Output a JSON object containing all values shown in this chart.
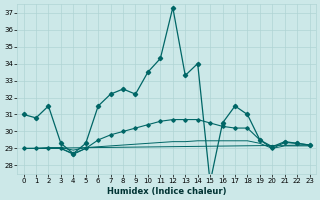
{
  "xlabel": "Humidex (Indice chaleur)",
  "bg_color": "#cce8e8",
  "grid_color": "#b0d4d4",
  "line_color": "#006666",
  "xlim": [
    -0.5,
    23.5
  ],
  "ylim": [
    27.5,
    37.5
  ],
  "yticks": [
    28,
    29,
    30,
    31,
    32,
    33,
    34,
    35,
    36,
    37
  ],
  "xticks": [
    0,
    1,
    2,
    3,
    4,
    5,
    6,
    7,
    8,
    9,
    10,
    11,
    12,
    13,
    14,
    15,
    16,
    17,
    18,
    19,
    20,
    21,
    22,
    23
  ],
  "line1": {
    "x": [
      0,
      1,
      2,
      3,
      4,
      5,
      6,
      7,
      8,
      9,
      10,
      11,
      12,
      13,
      14,
      15,
      16,
      17,
      18,
      19,
      20,
      21,
      22,
      23
    ],
    "y": [
      31.0,
      30.8,
      31.5,
      29.3,
      28.7,
      29.3,
      31.5,
      32.2,
      32.5,
      32.2,
      33.5,
      34.3,
      37.3,
      33.3,
      34.0,
      27.0,
      30.5,
      31.5,
      31.0,
      29.5,
      29.1,
      29.4,
      29.3,
      29.2
    ]
  },
  "line2": {
    "x": [
      0,
      1,
      2,
      3,
      4,
      5,
      6,
      7,
      8,
      9,
      10,
      11,
      12,
      13,
      14,
      15,
      16,
      17,
      18,
      19,
      20,
      21,
      22,
      23
    ],
    "y": [
      29.0,
      29.0,
      29.0,
      29.0,
      28.7,
      29.0,
      29.5,
      29.8,
      30.0,
      30.2,
      30.4,
      30.6,
      30.7,
      30.7,
      30.7,
      30.5,
      30.3,
      30.2,
      30.2,
      29.5,
      29.0,
      29.35,
      29.3,
      29.2
    ]
  },
  "line3": {
    "x": [
      0,
      1,
      2,
      3,
      4,
      5,
      6,
      7,
      8,
      9,
      10,
      11,
      12,
      13,
      14,
      15,
      16,
      17,
      18,
      19,
      20,
      21,
      22,
      23
    ],
    "y": [
      29.0,
      29.0,
      29.05,
      29.05,
      28.9,
      29.05,
      29.1,
      29.15,
      29.2,
      29.25,
      29.3,
      29.35,
      29.4,
      29.4,
      29.45,
      29.45,
      29.45,
      29.45,
      29.45,
      29.3,
      29.0,
      29.15,
      29.15,
      29.15
    ]
  },
  "line4": {
    "x": [
      0,
      23
    ],
    "y": [
      29.0,
      29.2
    ]
  },
  "line5": {
    "x": [
      0,
      1,
      2,
      3,
      4,
      5
    ],
    "y": [
      29.0,
      29.0,
      29.0,
      29.0,
      28.65,
      29.0
    ]
  }
}
